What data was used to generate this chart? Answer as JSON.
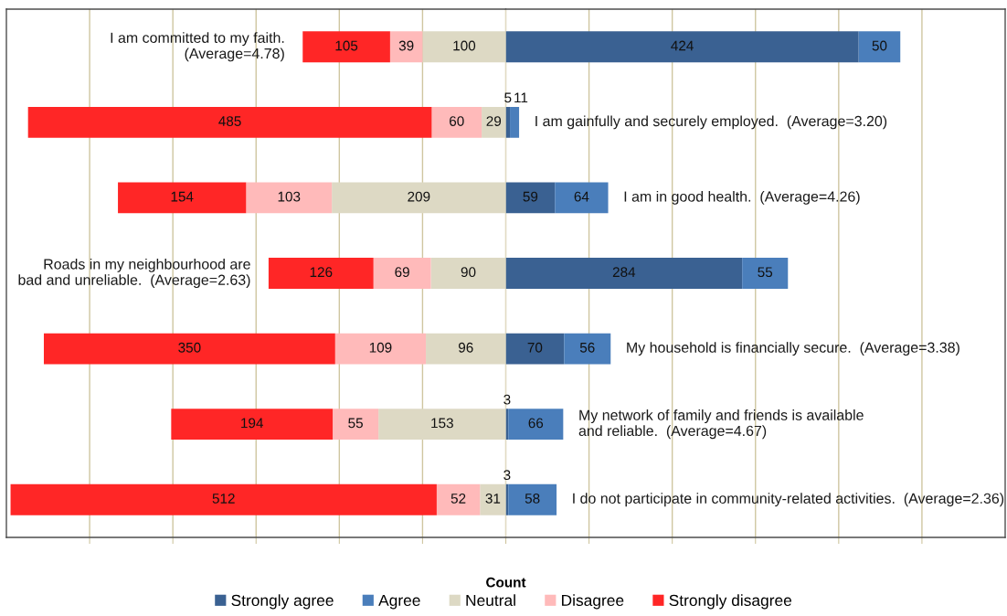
{
  "chart_data": [
    {
      "type": "bar",
      "orientation": "horizontal",
      "stacked": true,
      "categories": [
        "I am committed to my faith.\n(Average=4.78)",
        "I am gainfully and securely employed.  (Average=3.20)",
        "I am in good health.  (Average=4.26)",
        "Roads in my neighbourhood are\nbad and unreliable.  (Average=2.63)",
        "My household is financially secure.  (Average=3.38)",
        "My network of family and friends is available\nand reliable.  (Average=4.67)",
        "I do not participate in community-related activities.  (Average=2.36)"
      ],
      "series": [
        {
          "name": "Neutral",
          "color": "#ddd9c4",
          "values": [
            100,
            29,
            209,
            90,
            96,
            153,
            31
          ]
        },
        {
          "name": "Disagree",
          "color": "#ffbaba",
          "values": [
            39,
            60,
            103,
            69,
            109,
            55,
            52
          ]
        },
        {
          "name": "Strongly disagree",
          "color": "#ff2626",
          "values": [
            105,
            485,
            154,
            126,
            350,
            194,
            512
          ]
        }
      ],
      "data_labels": true,
      "xlabel": "Count",
      "xlim": [
        600,
        0
      ],
      "xticks": [
        {
          "value": 500,
          "label": null
        },
        {
          "value": 400,
          "label": null
        },
        {
          "value": 300,
          "label": null
        },
        {
          "value": 200,
          "label": null
        },
        {
          "value": 100,
          "label": null
        },
        {
          "value": 0,
          "label": null
        }
      ],
      "grid": "x",
      "legend": "bottom",
      "tick_labels": false
    },
    {
      "type": "bar",
      "orientation": "horizontal",
      "stacked": true,
      "categories": [
        "I am committed to my faith.\n(Average=4.78)",
        "I am gainfully and securely employed.  (Average=3.20)",
        "I am in good health.  (Average=4.26)",
        "Roads in my neighbourhood are\nbad and unreliable.  (Average=2.63)",
        "My household is financially secure.  (Average=3.38)",
        "My network of family and friends is available\nand reliable.  (Average=4.67)",
        "I do not participate in community-related activities.  (Average=2.36)"
      ],
      "series": [
        {
          "name": "Strongly agree",
          "color": "#3a6192",
          "values": [
            424,
            5,
            59,
            284,
            70,
            3,
            3
          ]
        },
        {
          "name": "Agree",
          "color": "#4a7ebb",
          "values": [
            50,
            11,
            64,
            55,
            56,
            66,
            58
          ]
        }
      ],
      "data_labels": true,
      "xlim": [
        0,
        600
      ],
      "xticks": [
        {
          "value": 0,
          "label": null
        },
        {
          "value": 100,
          "label": null
        },
        {
          "value": 200,
          "label": null
        },
        {
          "value": 300,
          "label": null
        },
        {
          "value": 400,
          "label": null
        },
        {
          "value": 500,
          "label": null
        }
      ],
      "grid": "x",
      "legend": "bottom",
      "tick_labels": false
    }
  ]
}
